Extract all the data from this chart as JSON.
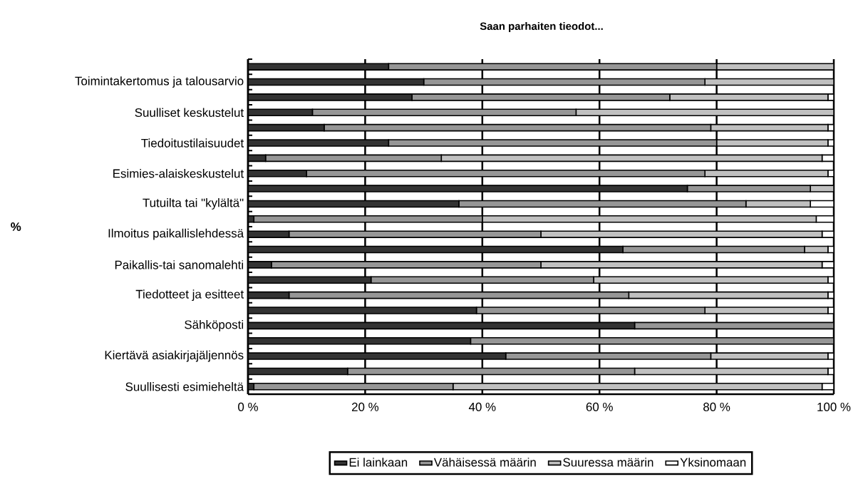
{
  "chart_data": {
    "type": "bar",
    "orientation": "horizontal",
    "stacked": true,
    "title": "Saan parhaiten tieodot...",
    "ylabel": "%",
    "categories": [
      null,
      "Toimintakertomus ja talousarvio",
      null,
      "Suulliset keskustelut",
      null,
      "Tiedoitustilaisuudet",
      null,
      "Esimies-alaiskeskustelut",
      null,
      "Tutuilta tai \"kylältä\"",
      null,
      "Ilmoitus paikallislehdessä",
      null,
      "Paikallis-tai sanomalehti",
      null,
      "Tiedotteet ja esitteet",
      null,
      "Sähköposti",
      null,
      "Kiertävä asiakirjajäljennös",
      null,
      "Suullisesti esimieheltä"
    ],
    "series": [
      {
        "name": "Ei lainkaan",
        "color": "#333333",
        "values": [
          24,
          30,
          28,
          11,
          13,
          24,
          3,
          10,
          75,
          36,
          1,
          7,
          64,
          4,
          21,
          7,
          39,
          66,
          38,
          44,
          17,
          1
        ]
      },
      {
        "name": "Vähäisessä määrin",
        "color": "#969696",
        "values": [
          56,
          48,
          44,
          45,
          66,
          56,
          30,
          68,
          21,
          49,
          39,
          43,
          31,
          46,
          38,
          58,
          39,
          34,
          62,
          35,
          49,
          34
        ]
      },
      {
        "name": "Suuressa määrin",
        "color": "#c0c0c0",
        "values": [
          20,
          22,
          27,
          44,
          20,
          19,
          65,
          21,
          4,
          11,
          57,
          48,
          4,
          48,
          40,
          34,
          21,
          0,
          0,
          20,
          33,
          63
        ]
      },
      {
        "name": "Yksinomaan",
        "color": "#ffffff",
        "values": [
          0,
          0,
          1,
          0,
          1,
          1,
          2,
          1,
          0,
          4,
          3,
          2,
          1,
          2,
          1,
          1,
          1,
          0,
          0,
          1,
          1,
          2
        ]
      }
    ],
    "xlim": [
      0,
      100
    ],
    "xticks": [
      {
        "value": 0,
        "label": "0 %"
      },
      {
        "value": 20,
        "label": "20 %"
      },
      {
        "value": 40,
        "label": "40 %"
      },
      {
        "value": 60,
        "label": "60 %"
      },
      {
        "value": 80,
        "label": "80 %"
      },
      {
        "value": 100,
        "label": "100 %"
      }
    ],
    "grid": "x",
    "legend": "bottom"
  }
}
